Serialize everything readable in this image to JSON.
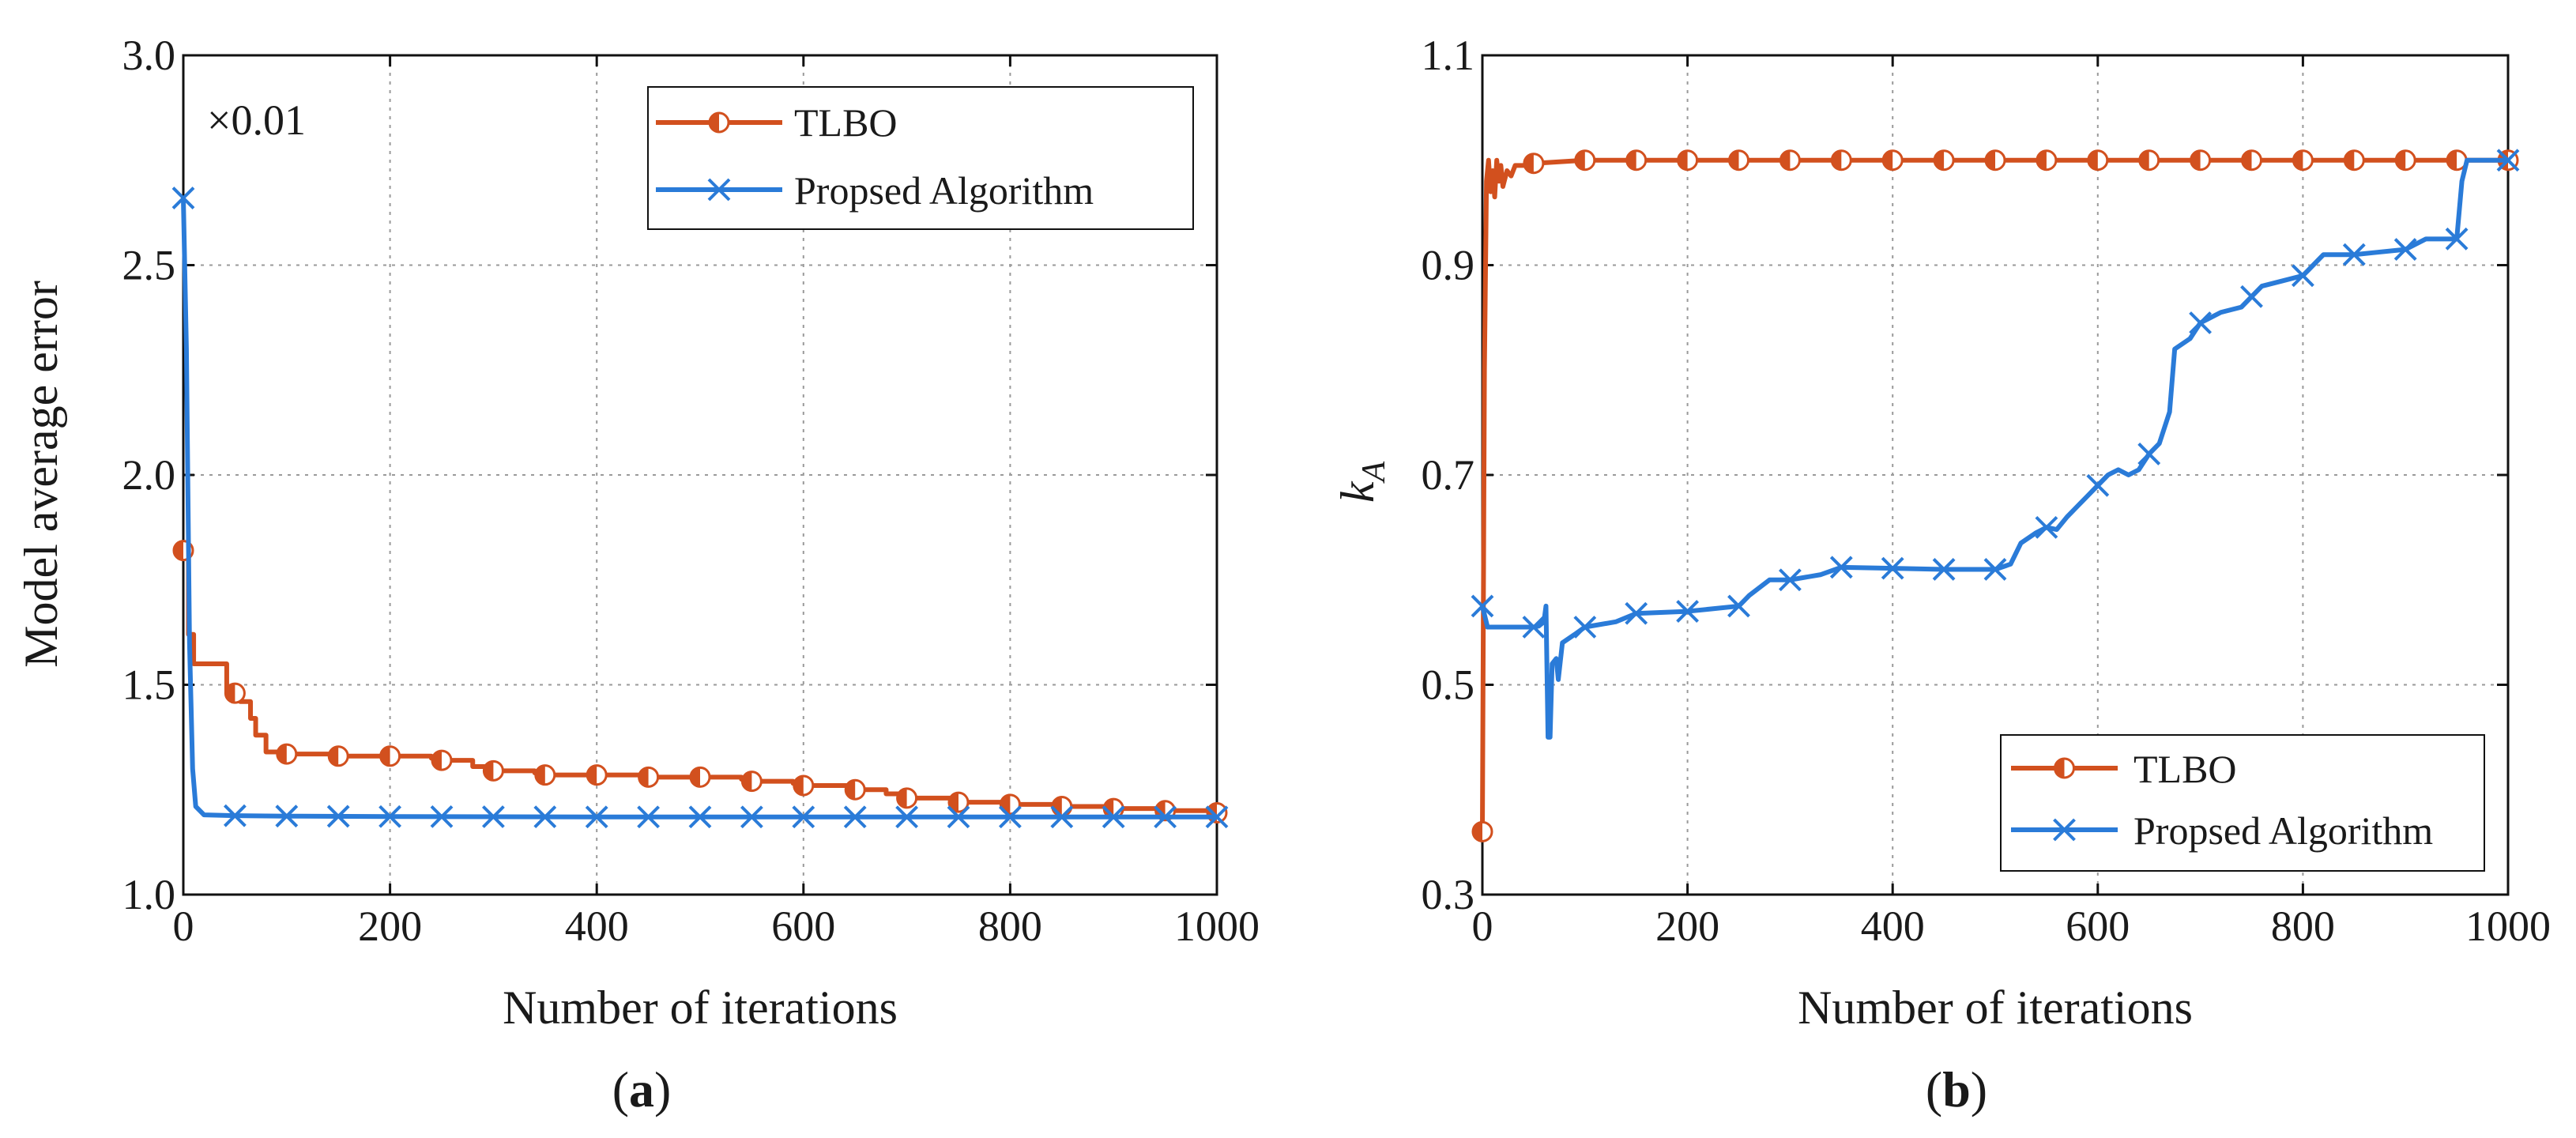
{
  "colors": {
    "tlbo": "#d2501e",
    "proposed": "#2a7bd8",
    "grid": "#9a9a9a",
    "axis": "#111111"
  },
  "chart_data": [
    {
      "type": "line",
      "caption": "(a)",
      "caption_letter": "a",
      "xlabel": "Number of iterations",
      "ylabel": "Model average error",
      "multiplier": "×0.01",
      "xlim": [
        0,
        1000
      ],
      "ylim": [
        1.0,
        3.0
      ],
      "xticks": [
        0,
        200,
        400,
        600,
        800,
        1000
      ],
      "xtick_labels": [
        "0",
        "200",
        "400",
        "600",
        "800",
        "1000"
      ],
      "yticks": [
        1.0,
        1.5,
        2.0,
        2.5,
        3.0
      ],
      "ytick_labels": [
        "1.0",
        "1.5",
        "2.0",
        "2.5",
        "3.0"
      ],
      "grid": true,
      "legend_position": "top-right",
      "series": [
        {
          "name": "TLBO",
          "marker": "half-circle",
          "step": true,
          "points": [
            [
              0,
              1.82
            ],
            [
              5,
              1.62
            ],
            [
              10,
              1.55
            ],
            [
              40,
              1.55
            ],
            [
              42,
              1.48
            ],
            [
              55,
              1.46
            ],
            [
              65,
              1.42
            ],
            [
              70,
              1.38
            ],
            [
              80,
              1.34
            ],
            [
              100,
              1.335
            ],
            [
              150,
              1.33
            ],
            [
              200,
              1.33
            ],
            [
              240,
              1.325
            ],
            [
              250,
              1.32
            ],
            [
              280,
              1.305
            ],
            [
              300,
              1.295
            ],
            [
              340,
              1.29
            ],
            [
              350,
              1.285
            ],
            [
              400,
              1.285
            ],
            [
              450,
              1.28
            ],
            [
              500,
              1.28
            ],
            [
              540,
              1.275
            ],
            [
              550,
              1.27
            ],
            [
              590,
              1.265
            ],
            [
              600,
              1.26
            ],
            [
              650,
              1.25
            ],
            [
              680,
              1.24
            ],
            [
              700,
              1.23
            ],
            [
              750,
              1.22
            ],
            [
              800,
              1.215
            ],
            [
              850,
              1.21
            ],
            [
              900,
              1.205
            ],
            [
              950,
              1.2
            ],
            [
              1000,
              1.195
            ]
          ],
          "marker_x": [
            0,
            50,
            100,
            150,
            200,
            250,
            300,
            350,
            400,
            450,
            500,
            550,
            600,
            650,
            700,
            750,
            800,
            850,
            900,
            950,
            1000
          ]
        },
        {
          "name": "Propsed Algorithm",
          "marker": "x",
          "step": false,
          "points": [
            [
              0,
              2.66
            ],
            [
              3,
              2.3
            ],
            [
              6,
              1.6
            ],
            [
              9,
              1.3
            ],
            [
              12,
              1.21
            ],
            [
              20,
              1.19
            ],
            [
              50,
              1.188
            ],
            [
              100,
              1.187
            ],
            [
              200,
              1.186
            ],
            [
              400,
              1.185
            ],
            [
              600,
              1.185
            ],
            [
              800,
              1.185
            ],
            [
              1000,
              1.185
            ]
          ],
          "marker_x": [
            0,
            50,
            100,
            150,
            200,
            250,
            300,
            350,
            400,
            450,
            500,
            550,
            600,
            650,
            700,
            750,
            800,
            850,
            900,
            950,
            1000
          ]
        }
      ]
    },
    {
      "type": "line",
      "caption": "(b)",
      "caption_letter": "b",
      "xlabel": "Number of iterations",
      "ylabel_main": "k",
      "ylabel_sub": "A",
      "xlim": [
        0,
        1000
      ],
      "ylim": [
        0.3,
        1.1
      ],
      "xticks": [
        0,
        200,
        400,
        600,
        800,
        1000
      ],
      "xtick_labels": [
        "0",
        "200",
        "400",
        "600",
        "800",
        "1000"
      ],
      "yticks": [
        0.3,
        0.5,
        0.7,
        0.9,
        1.1
      ],
      "ytick_labels": [
        "0.3",
        "0.5",
        "0.7",
        "0.9",
        "1.1"
      ],
      "grid": true,
      "legend_position": "bottom-right",
      "series": [
        {
          "name": "TLBO",
          "marker": "half-circle",
          "step": false,
          "points": [
            [
              0,
              0.36
            ],
            [
              2,
              0.8
            ],
            [
              4,
              0.98
            ],
            [
              6,
              1.0
            ],
            [
              8,
              0.97
            ],
            [
              10,
              0.99
            ],
            [
              12,
              0.965
            ],
            [
              14,
              1.0
            ],
            [
              16,
              0.98
            ],
            [
              18,
              0.995
            ],
            [
              20,
              0.975
            ],
            [
              24,
              0.99
            ],
            [
              28,
              0.985
            ],
            [
              32,
              0.995
            ],
            [
              40,
              0.995
            ],
            [
              50,
              0.997
            ],
            [
              100,
              1.0
            ],
            [
              1000,
              1.0
            ]
          ],
          "marker_x": [
            0,
            50,
            100,
            150,
            200,
            250,
            300,
            350,
            400,
            450,
            500,
            550,
            600,
            650,
            700,
            750,
            800,
            850,
            900,
            950,
            1000
          ]
        },
        {
          "name": "Propsed Algorithm",
          "marker": "x",
          "step": false,
          "points": [
            [
              0,
              0.575
            ],
            [
              5,
              0.555
            ],
            [
              50,
              0.555
            ],
            [
              55,
              0.556
            ],
            [
              60,
              0.56
            ],
            [
              62,
              0.575
            ],
            [
              64,
              0.45
            ],
            [
              66,
              0.45
            ],
            [
              68,
              0.52
            ],
            [
              72,
              0.525
            ],
            [
              74,
              0.505
            ],
            [
              78,
              0.54
            ],
            [
              90,
              0.548
            ],
            [
              100,
              0.555
            ],
            [
              130,
              0.56
            ],
            [
              150,
              0.568
            ],
            [
              200,
              0.57
            ],
            [
              250,
              0.575
            ],
            [
              260,
              0.585
            ],
            [
              280,
              0.6
            ],
            [
              300,
              0.6
            ],
            [
              330,
              0.605
            ],
            [
              350,
              0.612
            ],
            [
              400,
              0.611
            ],
            [
              450,
              0.61
            ],
            [
              500,
              0.61
            ],
            [
              515,
              0.615
            ],
            [
              525,
              0.635
            ],
            [
              540,
              0.645
            ],
            [
              550,
              0.65
            ],
            [
              560,
              0.648
            ],
            [
              570,
              0.66
            ],
            [
              580,
              0.67
            ],
            [
              590,
              0.68
            ],
            [
              600,
              0.69
            ],
            [
              610,
              0.7
            ],
            [
              620,
              0.705
            ],
            [
              630,
              0.7
            ],
            [
              640,
              0.705
            ],
            [
              650,
              0.72
            ],
            [
              660,
              0.73
            ],
            [
              670,
              0.76
            ],
            [
              675,
              0.82
            ],
            [
              690,
              0.83
            ],
            [
              700,
              0.845
            ],
            [
              720,
              0.855
            ],
            [
              740,
              0.86
            ],
            [
              750,
              0.87
            ],
            [
              760,
              0.88
            ],
            [
              780,
              0.885
            ],
            [
              800,
              0.89
            ],
            [
              810,
              0.9
            ],
            [
              820,
              0.91
            ],
            [
              850,
              0.91
            ],
            [
              870,
              0.912
            ],
            [
              900,
              0.915
            ],
            [
              920,
              0.925
            ],
            [
              950,
              0.925
            ],
            [
              955,
              0.98
            ],
            [
              960,
              1.0
            ],
            [
              1000,
              1.0
            ]
          ],
          "marker_x": [
            0,
            50,
            100,
            150,
            200,
            250,
            300,
            350,
            400,
            450,
            500,
            550,
            600,
            650,
            700,
            750,
            800,
            850,
            900,
            950,
            1000
          ]
        }
      ]
    }
  ]
}
